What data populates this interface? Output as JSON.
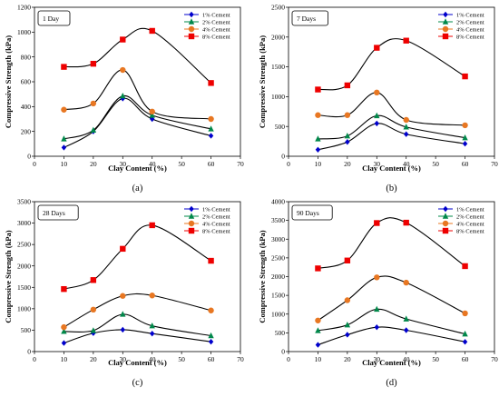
{
  "chart_data": [
    {
      "type": "line",
      "panel_label": "(a)",
      "tag": "1 Day",
      "xlabel": "Clay Content (%)",
      "ylabel": "Compressive Strength (kPa)",
      "xlim": [
        0,
        70
      ],
      "ylim": [
        0,
        1200
      ],
      "xticks": [
        0,
        10,
        20,
        30,
        40,
        50,
        60,
        70
      ],
      "yticks": [
        0,
        200,
        400,
        600,
        800,
        1000,
        1200
      ],
      "x": [
        10,
        20,
        30,
        40,
        60
      ],
      "legend_position": "top-right",
      "series": [
        {
          "name": "1% Cement",
          "color": "#0000cc",
          "marker": "diamond",
          "values": [
            70,
            200,
            465,
            300,
            165
          ]
        },
        {
          "name": "2% Cement",
          "color": "#00884a",
          "marker": "triangle",
          "values": [
            140,
            210,
            485,
            330,
            220
          ]
        },
        {
          "name": "4% Cement",
          "color": "#e87722",
          "marker": "circle",
          "values": [
            375,
            425,
            695,
            360,
            300
          ]
        },
        {
          "name": "8% Cement",
          "color": "#ee0000",
          "marker": "square",
          "values": [
            720,
            745,
            940,
            1010,
            590
          ]
        }
      ]
    },
    {
      "type": "line",
      "panel_label": "(b)",
      "tag": "7 Days",
      "xlabel": "Clay Content (%)",
      "ylabel": "Compressive Strength (kPa)",
      "xlim": [
        0,
        70
      ],
      "ylim": [
        0,
        2500
      ],
      "xticks": [
        0,
        10,
        20,
        30,
        40,
        50,
        60,
        70
      ],
      "yticks": [
        0,
        500,
        1000,
        1500,
        2000,
        2500
      ],
      "x": [
        10,
        20,
        30,
        40,
        60
      ],
      "legend_position": "top-right",
      "series": [
        {
          "name": "1% Cement",
          "color": "#0000cc",
          "marker": "diamond",
          "values": [
            110,
            240,
            550,
            370,
            210
          ]
        },
        {
          "name": "2% Cement",
          "color": "#00884a",
          "marker": "triangle",
          "values": [
            290,
            340,
            680,
            490,
            310
          ]
        },
        {
          "name": "4% Cement",
          "color": "#e87722",
          "marker": "circle",
          "values": [
            690,
            690,
            1070,
            610,
            520
          ]
        },
        {
          "name": "8% Cement",
          "color": "#ee0000",
          "marker": "square",
          "values": [
            1120,
            1190,
            1820,
            1940,
            1340
          ]
        }
      ]
    },
    {
      "type": "line",
      "panel_label": "(c)",
      "tag": "28 Days",
      "xlabel": "Clay Content (%)",
      "ylabel": "Compressive Strength (kPa)",
      "xlim": [
        0,
        70
      ],
      "ylim": [
        0,
        3500
      ],
      "xticks": [
        0,
        10,
        20,
        30,
        40,
        50,
        60,
        70
      ],
      "yticks": [
        0,
        500,
        1000,
        1500,
        2000,
        2500,
        3000,
        3500
      ],
      "x": [
        10,
        20,
        30,
        40,
        60
      ],
      "legend_position": "top-right",
      "series": [
        {
          "name": "1% Cement",
          "color": "#0000cc",
          "marker": "diamond",
          "values": [
            200,
            430,
            510,
            420,
            230
          ]
        },
        {
          "name": "2% Cement",
          "color": "#00884a",
          "marker": "triangle",
          "values": [
            470,
            490,
            870,
            600,
            370
          ]
        },
        {
          "name": "4% Cement",
          "color": "#e87722",
          "marker": "circle",
          "values": [
            570,
            980,
            1300,
            1310,
            960
          ]
        },
        {
          "name": "8% Cement",
          "color": "#ee0000",
          "marker": "square",
          "values": [
            1460,
            1670,
            2400,
            2950,
            2120
          ]
        }
      ]
    },
    {
      "type": "line",
      "panel_label": "(d)",
      "tag": "90 Days",
      "xlabel": "Clay Content (%)",
      "ylabel": "Compressive Strength (kPa)",
      "xlim": [
        0,
        70
      ],
      "ylim": [
        0,
        4000
      ],
      "xticks": [
        0,
        10,
        20,
        30,
        40,
        50,
        60,
        70
      ],
      "yticks": [
        0,
        500,
        1000,
        1500,
        2000,
        2500,
        3000,
        3500,
        4000
      ],
      "x": [
        10,
        20,
        30,
        40,
        60
      ],
      "legend_position": "top-right",
      "series": [
        {
          "name": "1% Cement",
          "color": "#0000cc",
          "marker": "diamond",
          "values": [
            180,
            450,
            650,
            570,
            260
          ]
        },
        {
          "name": "2% Cement",
          "color": "#00884a",
          "marker": "triangle",
          "values": [
            560,
            710,
            1130,
            870,
            470
          ]
        },
        {
          "name": "4% Cement",
          "color": "#e87722",
          "marker": "circle",
          "values": [
            830,
            1370,
            1980,
            1840,
            1020
          ]
        },
        {
          "name": "8% Cement",
          "color": "#ee0000",
          "marker": "square",
          "values": [
            2220,
            2430,
            3430,
            3440,
            2280
          ]
        }
      ]
    }
  ]
}
